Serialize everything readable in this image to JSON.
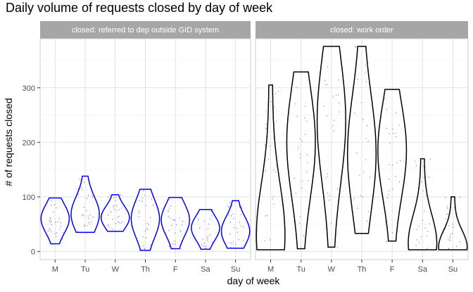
{
  "chart_data": {
    "type": "violin",
    "title": "Daily volume of requests closed by day of week",
    "xlabel": "day of week",
    "ylabel": "# of requests closed",
    "categories": [
      "M",
      "Tu",
      "W",
      "Th",
      "F",
      "Sa",
      "Su"
    ],
    "y_ticks": [
      0,
      100,
      200,
      300
    ],
    "ylim": [
      -15,
      390
    ],
    "grid": true,
    "points_jittered": true,
    "panels": [
      {
        "strip": "closed: referred to dep outside GID system",
        "color": "#0000ff",
        "violins": [
          {
            "day": "M",
            "min": 14,
            "max": 98,
            "mode": 60
          },
          {
            "day": "Tu",
            "min": 35,
            "max": 138,
            "mode": 68
          },
          {
            "day": "W",
            "min": 37,
            "max": 104,
            "mode": 62
          },
          {
            "day": "Th",
            "min": 2,
            "max": 114,
            "mode": 60
          },
          {
            "day": "F",
            "min": 5,
            "max": 99,
            "mode": 58
          },
          {
            "day": "Sa",
            "min": 4,
            "max": 77,
            "mode": 43
          },
          {
            "day": "Su",
            "min": 6,
            "max": 93,
            "mode": 37
          }
        ]
      },
      {
        "strip": "closed: work order",
        "color": "#000000",
        "violins": [
          {
            "day": "M",
            "min": 3,
            "max": 305,
            "mode": 30
          },
          {
            "day": "Tu",
            "min": 5,
            "max": 329,
            "mode": 200
          },
          {
            "day": "W",
            "min": 8,
            "max": 376,
            "mode": 240
          },
          {
            "day": "Th",
            "min": 33,
            "max": 376,
            "mode": 180
          },
          {
            "day": "F",
            "min": 19,
            "max": 297,
            "mode": 185
          },
          {
            "day": "Sa",
            "min": 3,
            "max": 170,
            "mode": 15
          },
          {
            "day": "Su",
            "min": 3,
            "max": 100,
            "mode": 8
          }
        ]
      }
    ]
  }
}
